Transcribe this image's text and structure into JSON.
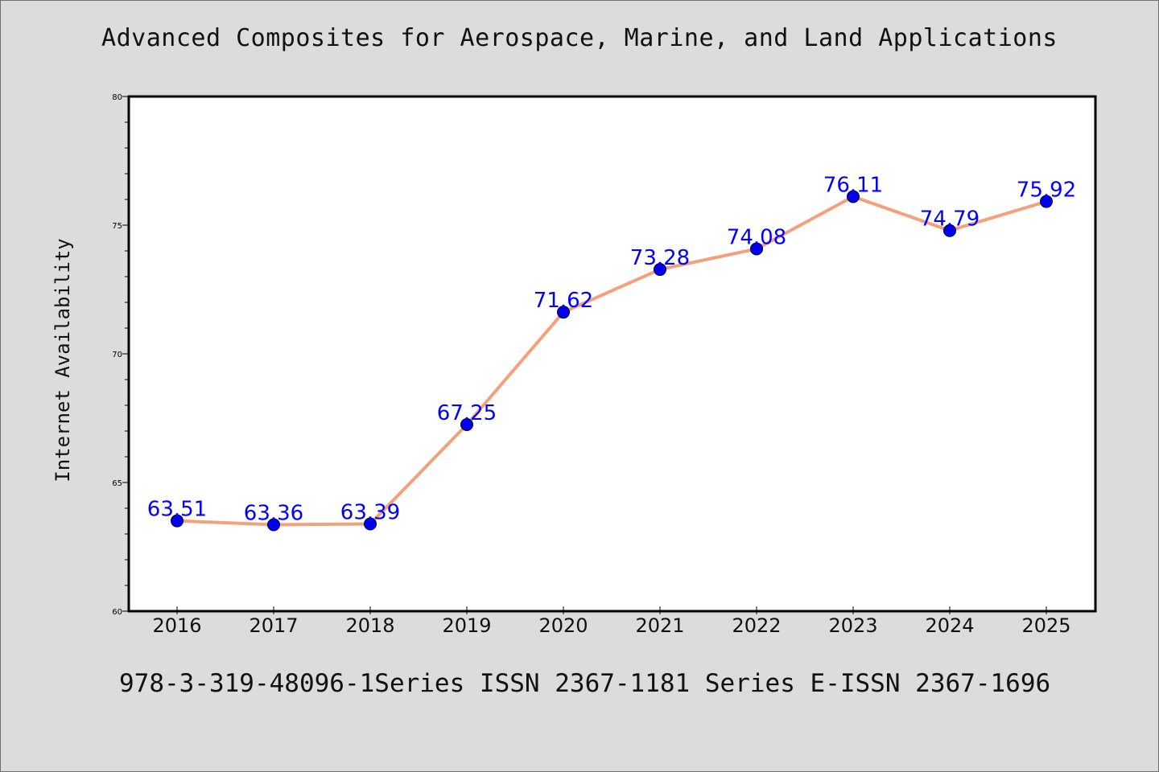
{
  "title": "Advanced Composites for Aerospace, Marine, and Land Applications",
  "footer": "978-3-319-48096-1Series ISSN 2367-1181 Series E-ISSN 2367-1696",
  "chart_data": {
    "type": "line",
    "title": "Advanced Composites for Aerospace, Marine, and Land Applications",
    "xlabel": "",
    "ylabel": "Internet Availability",
    "categories": [
      "2016",
      "2017",
      "2018",
      "2019",
      "2020",
      "2021",
      "2022",
      "2023",
      "2024",
      "2025"
    ],
    "series": [
      {
        "values": [
          63.51,
          63.36,
          63.39,
          67.25,
          71.62,
          73.28,
          74.08,
          76.11,
          74.79,
          75.92
        ],
        "line_color": "#f4a07c",
        "marker_color": "#0000ee"
      }
    ],
    "data_labels": [
      "63.51",
      "63.36",
      "63.39",
      "67.25",
      "71.62",
      "73.28",
      "74.08",
      "76.11",
      "74.79",
      "75.92"
    ],
    "ylim": [
      60,
      80
    ],
    "yticks": [
      60,
      65,
      70,
      75,
      80
    ],
    "grid": false,
    "legend": "none"
  }
}
